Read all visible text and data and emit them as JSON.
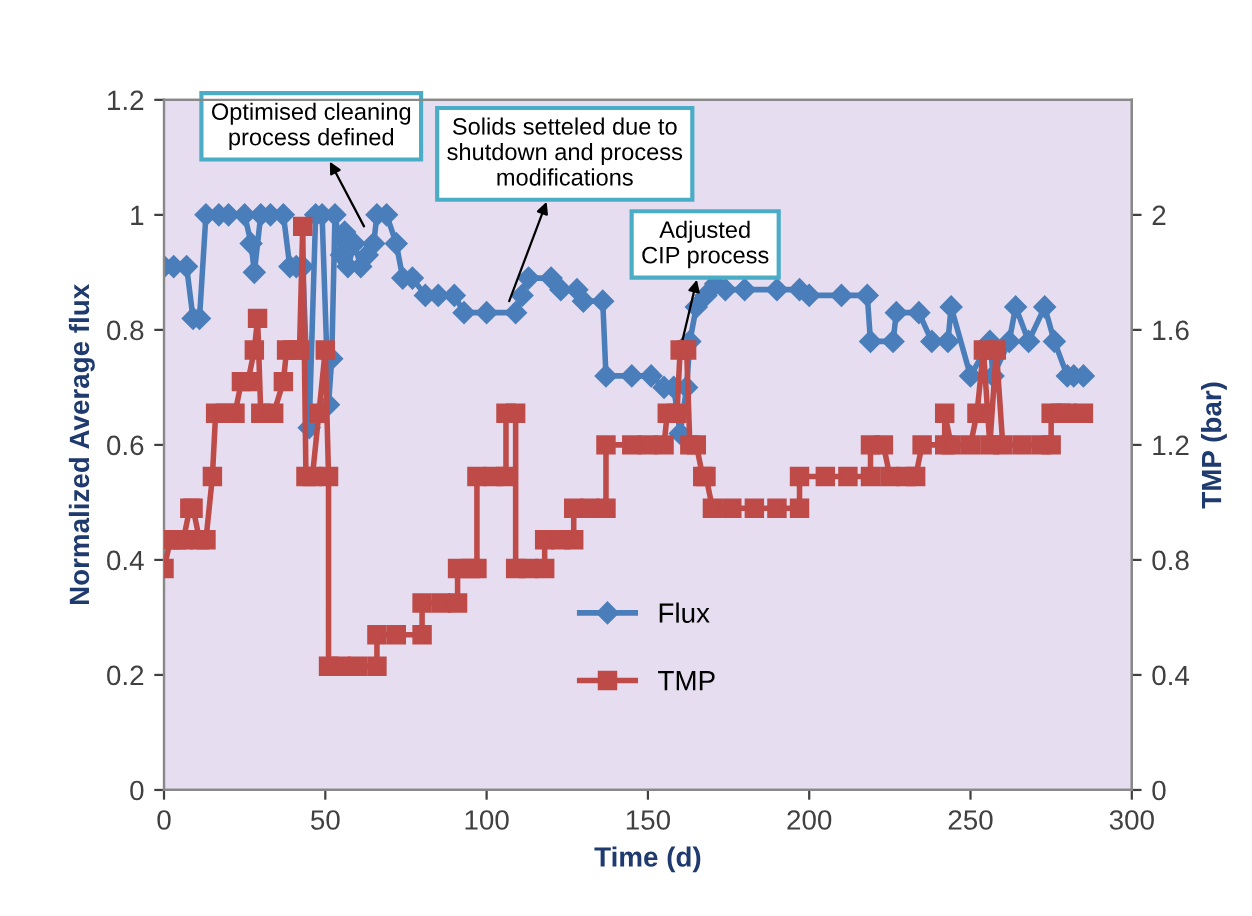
{
  "chart_data": {
    "type": "line",
    "xlabel": "Time (d)",
    "ylabel": "Normalized Average flux",
    "y2label": "TMP (bar)",
    "xlim": [
      0,
      300
    ],
    "xticks": [
      0,
      50,
      100,
      150,
      200,
      250,
      300
    ],
    "ylim": [
      0,
      1.2
    ],
    "yticks": [
      0,
      0.2,
      0.4,
      0.6,
      0.8,
      1,
      1.2
    ],
    "y2lim": [
      0,
      2.4
    ],
    "y2ticks": [
      0,
      0.4,
      0.8,
      1.2,
      1.6,
      2
    ],
    "grid": false,
    "legend": "bottom",
    "series": [
      {
        "name": "Flux",
        "color": "#4a7ebb",
        "marker": "diamond",
        "x": [
          0,
          3,
          7,
          9,
          11,
          13,
          17,
          20,
          25,
          27,
          28,
          30,
          33,
          37,
          39,
          41,
          43,
          45,
          47,
          49,
          51,
          52,
          53,
          55,
          56,
          57,
          59,
          61,
          63,
          65,
          66,
          69,
          72,
          74,
          77,
          81,
          85,
          90,
          93,
          100,
          109,
          111,
          113,
          120,
          123,
          128,
          130,
          136,
          137,
          145,
          151,
          155,
          158,
          160,
          162,
          163,
          165,
          168,
          171,
          174,
          180,
          190,
          197,
          200,
          210,
          218,
          219,
          226,
          227,
          234,
          238,
          243,
          244,
          250,
          256,
          257,
          262,
          264,
          268,
          273,
          276,
          280,
          282,
          285
        ],
        "values": [
          0.91,
          0.91,
          0.91,
          0.82,
          0.82,
          1.0,
          1.0,
          1.0,
          1.0,
          0.95,
          0.9,
          1.0,
          1.0,
          1.0,
          0.91,
          0.91,
          0.91,
          0.63,
          1.0,
          1.0,
          0.67,
          0.75,
          1.0,
          0.93,
          0.97,
          0.91,
          0.95,
          0.91,
          0.93,
          0.95,
          1.0,
          1.0,
          0.95,
          0.89,
          0.89,
          0.86,
          0.86,
          0.86,
          0.83,
          0.83,
          0.83,
          0.86,
          0.89,
          0.89,
          0.87,
          0.87,
          0.85,
          0.85,
          0.72,
          0.72,
          0.72,
          0.7,
          0.7,
          0.62,
          0.7,
          0.78,
          0.84,
          0.86,
          0.88,
          0.87,
          0.87,
          0.87,
          0.87,
          0.86,
          0.86,
          0.86,
          0.78,
          0.78,
          0.83,
          0.83,
          0.78,
          0.78,
          0.84,
          0.72,
          0.78,
          0.72,
          0.78,
          0.84,
          0.78,
          0.84,
          0.78,
          0.72,
          0.72,
          0.72
        ]
      },
      {
        "name": "TMP",
        "color": "#be4b48",
        "marker": "square",
        "axis": "y2",
        "x": [
          0,
          2,
          4,
          6,
          8,
          9,
          11,
          13,
          15,
          16,
          19,
          22,
          24,
          26,
          28,
          29,
          30,
          34,
          37,
          38,
          40,
          42,
          43,
          44,
          46,
          48,
          50,
          51,
          51,
          55,
          60,
          66,
          66,
          72,
          80,
          80,
          86,
          91,
          91,
          95,
          97,
          97,
          102,
          106,
          106,
          109,
          109,
          113,
          118,
          118,
          123,
          127,
          127,
          132,
          137,
          137,
          145,
          150,
          155,
          156,
          159,
          160,
          162,
          163,
          165,
          167,
          168,
          170,
          176,
          183,
          190,
          197,
          197,
          205,
          212,
          219,
          219,
          223,
          225,
          230,
          233,
          235,
          242,
          242,
          244,
          250,
          252,
          254,
          256,
          258,
          260,
          266,
          272,
          275,
          275,
          278,
          280,
          285
        ],
        "values": [
          0.77,
          0.87,
          0.87,
          0.87,
          0.98,
          0.98,
          0.87,
          0.87,
          1.09,
          1.31,
          1.31,
          1.31,
          1.42,
          1.42,
          1.53,
          1.64,
          1.31,
          1.31,
          1.42,
          1.53,
          1.53,
          1.53,
          1.96,
          1.09,
          1.09,
          1.31,
          1.53,
          1.09,
          0.43,
          0.43,
          0.43,
          0.43,
          0.54,
          0.54,
          0.54,
          0.65,
          0.65,
          0.65,
          0.77,
          0.77,
          0.77,
          1.09,
          1.09,
          1.09,
          1.31,
          1.31,
          0.77,
          0.77,
          0.77,
          0.87,
          0.87,
          0.87,
          0.98,
          0.98,
          0.98,
          1.2,
          1.2,
          1.2,
          1.2,
          1.31,
          1.31,
          1.53,
          1.53,
          1.2,
          1.2,
          1.09,
          1.09,
          0.98,
          0.98,
          0.98,
          0.98,
          0.98,
          1.09,
          1.09,
          1.09,
          1.09,
          1.2,
          1.2,
          1.09,
          1.09,
          1.09,
          1.2,
          1.2,
          1.31,
          1.2,
          1.2,
          1.31,
          1.53,
          1.2,
          1.53,
          1.2,
          1.2,
          1.2,
          1.2,
          1.31,
          1.31,
          1.31,
          1.31
        ]
      }
    ],
    "annotations": [
      {
        "text": "Optimised cleaning\nprocess defined",
        "x": 62,
        "y": 0.98
      },
      {
        "text": "Solids setteled due to\nshutdown and process\nmodifications",
        "x": 107,
        "y": 0.85
      },
      {
        "text": "Adjusted\nCIP process",
        "x": 160,
        "y": 0.765
      }
    ]
  }
}
